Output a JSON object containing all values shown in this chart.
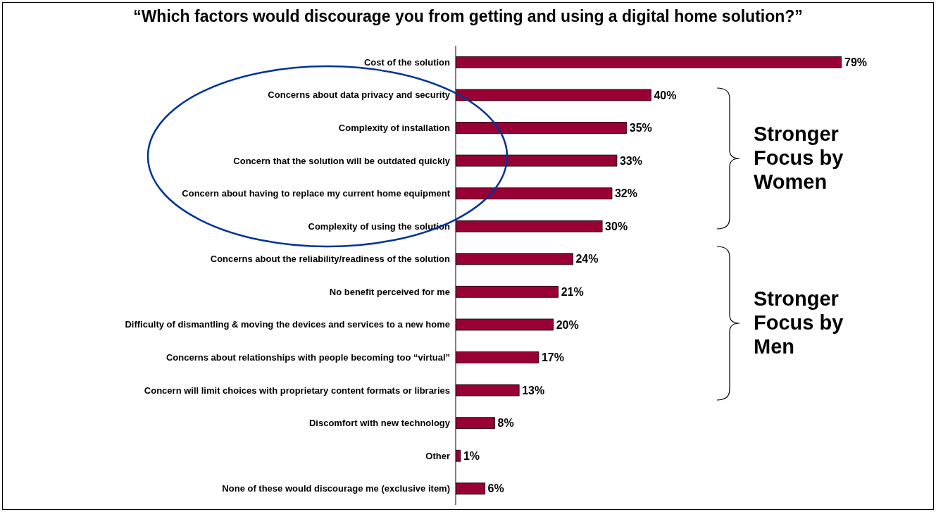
{
  "chart_data": {
    "type": "bar",
    "orientation": "horizontal",
    "title": "“Which factors would discourage you from getting and using a digital home solution?”",
    "categories": [
      "Cost of the solution",
      "Concerns about data privacy and security",
      "Complexity of installation",
      "Concern that the solution will be outdated quickly",
      "Concern about having to replace my current home equipment",
      "Complexity of using the solution",
      "Concerns about the reliability/readiness of the solution",
      "No benefit perceived for me",
      "Difficulty of dismantling & moving the devices and services to a new home",
      "Concerns about relationships with people becoming too “virtual”",
      "Concern will limit choices with  proprietary content formats or libraries",
      "Discomfort with new technology",
      "Other",
      "None of these would discourage me (exclusive item)"
    ],
    "values": [
      79,
      40,
      35,
      33,
      32,
      30,
      24,
      21,
      20,
      17,
      13,
      8,
      1,
      6
    ],
    "value_labels": [
      "79%",
      "40%",
      "35%",
      "33%",
      "32%",
      "30%",
      "24%",
      "21%",
      "20%",
      "17%",
      "13%",
      "8%",
      "1%",
      "6%"
    ],
    "color": "#990033",
    "tick_labels": "y",
    "annotations": [
      "Stronger Focus by Women",
      "Stronger Focus by Men"
    ]
  }
}
